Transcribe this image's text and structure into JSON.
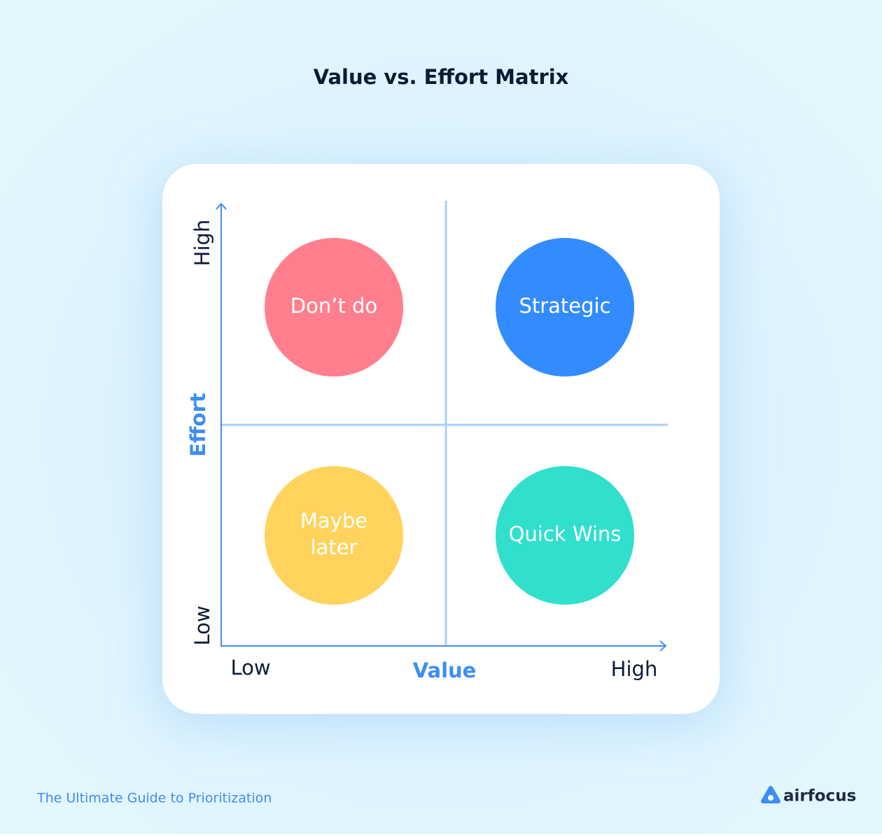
{
  "header": {
    "title": "Value vs. Effort Matrix"
  },
  "matrix": {
    "y_axis": {
      "label": "Effort",
      "low": "Low",
      "high": "High"
    },
    "x_axis": {
      "label": "Value",
      "low": "Low",
      "high": "High"
    },
    "quadrants": [
      {
        "lines": [
          "Don’t do"
        ],
        "color": "#ff7f8e"
      },
      {
        "lines": [
          "Strategic"
        ],
        "color": "#328cff"
      },
      {
        "lines": [
          "Maybe",
          "later"
        ],
        "color": "#ffd35c"
      },
      {
        "lines": [
          "Quick Wins"
        ],
        "color": "#31dfcd"
      }
    ]
  },
  "footer": {
    "guide": "The Ultimate Guide to Prioritization",
    "brand": "airfocus"
  }
}
